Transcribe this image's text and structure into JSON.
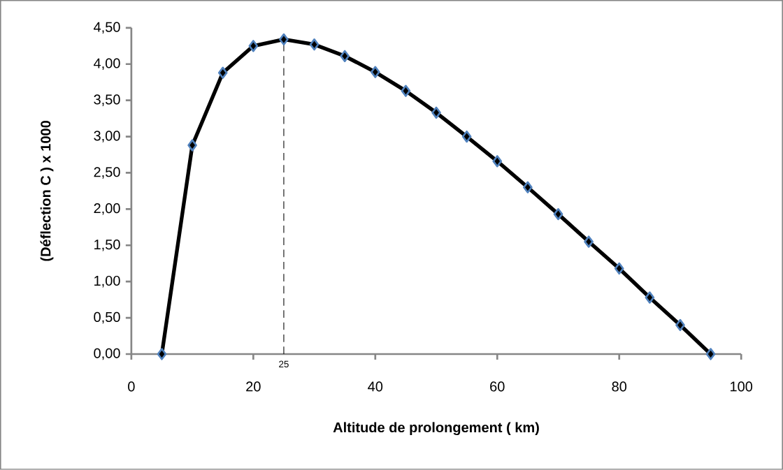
{
  "chart_data": {
    "type": "line",
    "xlabel": "Altitude de prolongement ( km)",
    "ylabel": "(Déflection C ) x 1000",
    "x": [
      5,
      10,
      15,
      20,
      25,
      30,
      35,
      40,
      45,
      50,
      55,
      60,
      65,
      70,
      75,
      80,
      85,
      90,
      95
    ],
    "series": [
      {
        "color": "#000000",
        "values": [
          0,
          2.88,
          3.88,
          4.25,
          4.34,
          4.27,
          4.11,
          3.89,
          3.63,
          3.33,
          3.0,
          2.66,
          2.3,
          1.93,
          1.55,
          1.18,
          0.78,
          0.4,
          0
        ]
      }
    ],
    "xlim": [
      0,
      100
    ],
    "ylim": [
      0,
      4.5
    ],
    "xticks": [
      0,
      20,
      40,
      60,
      80,
      100
    ],
    "yticks": [
      {
        "value": 0,
        "label": "0,00"
      },
      {
        "value": 0.5,
        "label": "0,50"
      },
      {
        "value": 1,
        "label": "1,00"
      },
      {
        "value": 1.5,
        "label": "1,50"
      },
      {
        "value": 2,
        "label": "2,00"
      },
      {
        "value": 2.5,
        "label": "2,50"
      },
      {
        "value": 3,
        "label": "3,00"
      },
      {
        "value": 3.5,
        "label": "3,50"
      },
      {
        "value": 4,
        "label": "4,00"
      },
      {
        "value": 4.5,
        "label": "4,50"
      }
    ],
    "ref_lines": [
      {
        "axis": "x",
        "value": 25,
        "label": "25",
        "line_style": "dashed",
        "color": "#000000"
      }
    ],
    "marker": "diamond",
    "line_style": "solid"
  }
}
